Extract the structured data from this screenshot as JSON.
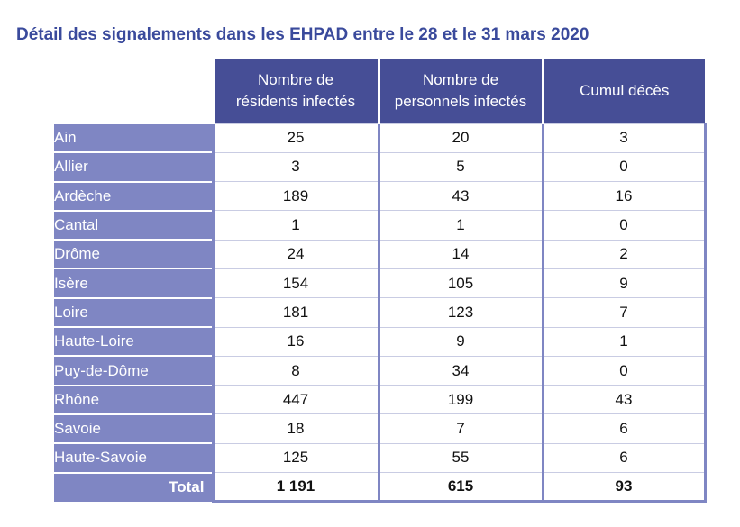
{
  "title": "Détail des signalements dans les EHPAD entre le 28 et le 31 mars 2020",
  "columns": [
    "Nombre de\nrésidents infectés",
    "Nombre de\npersonnels infectés",
    "Cumul décès"
  ],
  "rows": [
    {
      "label": "Ain",
      "residents": "25",
      "personnels": "20",
      "deces": "3"
    },
    {
      "label": "Allier",
      "residents": "3",
      "personnels": "5",
      "deces": "0"
    },
    {
      "label": "Ardèche",
      "residents": "189",
      "personnels": "43",
      "deces": "16"
    },
    {
      "label": "Cantal",
      "residents": "1",
      "personnels": "1",
      "deces": "0"
    },
    {
      "label": "Drôme",
      "residents": "24",
      "personnels": "14",
      "deces": "2"
    },
    {
      "label": "Isère",
      "residents": "154",
      "personnels": "105",
      "deces": "9"
    },
    {
      "label": "Loire",
      "residents": "181",
      "personnels": "123",
      "deces": "7"
    },
    {
      "label": "Haute-Loire",
      "residents": "16",
      "personnels": "9",
      "deces": "1"
    },
    {
      "label": "Puy-de-Dôme",
      "residents": "8",
      "personnels": "34",
      "deces": "0"
    },
    {
      "label": "Rhône",
      "residents": "447",
      "personnels": "199",
      "deces": "43"
    },
    {
      "label": "Savoie",
      "residents": "18",
      "personnels": "7",
      "deces": "6"
    },
    {
      "label": "Haute-Savoie",
      "residents": "125",
      "personnels": "55",
      "deces": "6"
    }
  ],
  "total": {
    "label": "Total",
    "residents": "1 191",
    "personnels": "615",
    "deces": "93"
  }
}
